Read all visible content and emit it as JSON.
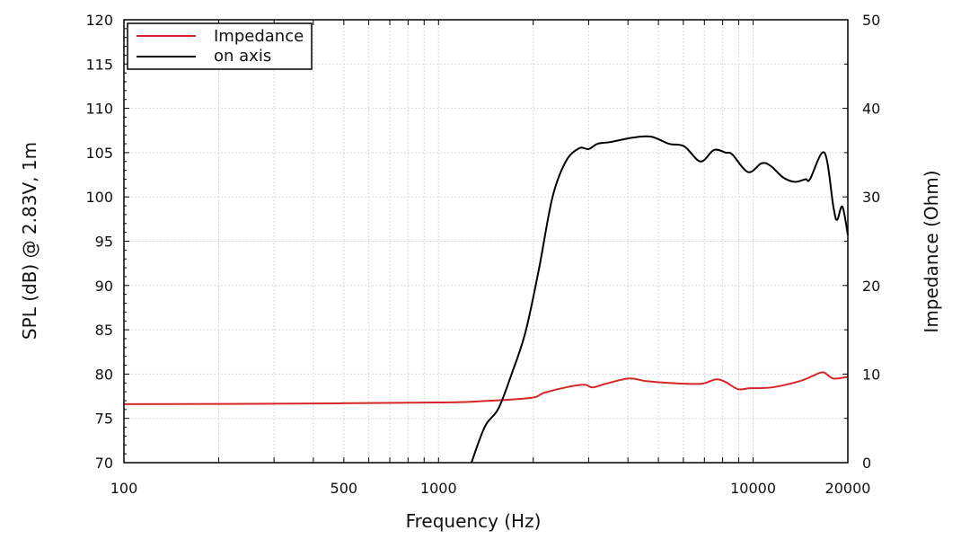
{
  "chart_data": {
    "type": "line",
    "title": "",
    "xlabel": "Frequency (Hz)",
    "ylabel": "SPL (dB) @ 2.83V, 1m",
    "y2label": "Impedance (Ohm)",
    "xscale": "log",
    "xlim": [
      100,
      20000
    ],
    "ylim": [
      70,
      120
    ],
    "y2lim": [
      0,
      50
    ],
    "grid": true,
    "legend_position": "top-left",
    "x_tick_labels": [
      "100",
      "500",
      "1000",
      "10000",
      "20000"
    ],
    "x_ticks": [
      100,
      500,
      1000,
      10000,
      20000
    ],
    "y_ticks": [
      70,
      75,
      80,
      85,
      90,
      95,
      100,
      105,
      110,
      115,
      120
    ],
    "y2_ticks": [
      0,
      10,
      20,
      30,
      40,
      50
    ],
    "series": [
      {
        "name": "Impedance",
        "axis": "right",
        "color": "#d62728",
        "x": [
          100,
          300,
          1000,
          1300,
          1951,
          2171,
          2620,
          2917,
          3087,
          3396,
          4022,
          4586,
          5405,
          6802,
          7610,
          8178,
          8950,
          9770,
          11500,
          14050,
          15500,
          16700,
          17990,
          20000
        ],
        "y": [
          6.6,
          6.65,
          6.8,
          6.9,
          7.3,
          7.9,
          8.6,
          8.8,
          8.5,
          8.9,
          9.5,
          9.2,
          9.0,
          8.9,
          9.4,
          9.1,
          8.3,
          8.4,
          8.5,
          9.2,
          9.8,
          10.2,
          9.5,
          9.7
        ]
      },
      {
        "name": "on axis",
        "axis": "left",
        "color": "#000000",
        "x": [
          1272,
          1405,
          1550,
          1711,
          1888,
          2084,
          2300,
          2538,
          2800,
          2999,
          3205,
          3527,
          4157,
          4740,
          5405,
          6045,
          6802,
          7508,
          8178,
          8580,
          9640,
          10640,
          11370,
          12450,
          13570,
          14680,
          15160,
          16850,
          17990,
          18480,
          19220,
          20000
        ],
        "y": [
          70,
          74.1,
          76.1,
          80.1,
          84.7,
          91.8,
          99.9,
          104,
          105.5,
          105.4,
          106,
          106.2,
          106.7,
          106.8,
          106,
          105.7,
          104,
          105.3,
          105,
          104.8,
          102.8,
          103.8,
          103.5,
          102.2,
          101.7,
          102,
          102,
          105,
          98.9,
          97.4,
          98.9,
          95.7
        ]
      }
    ]
  }
}
